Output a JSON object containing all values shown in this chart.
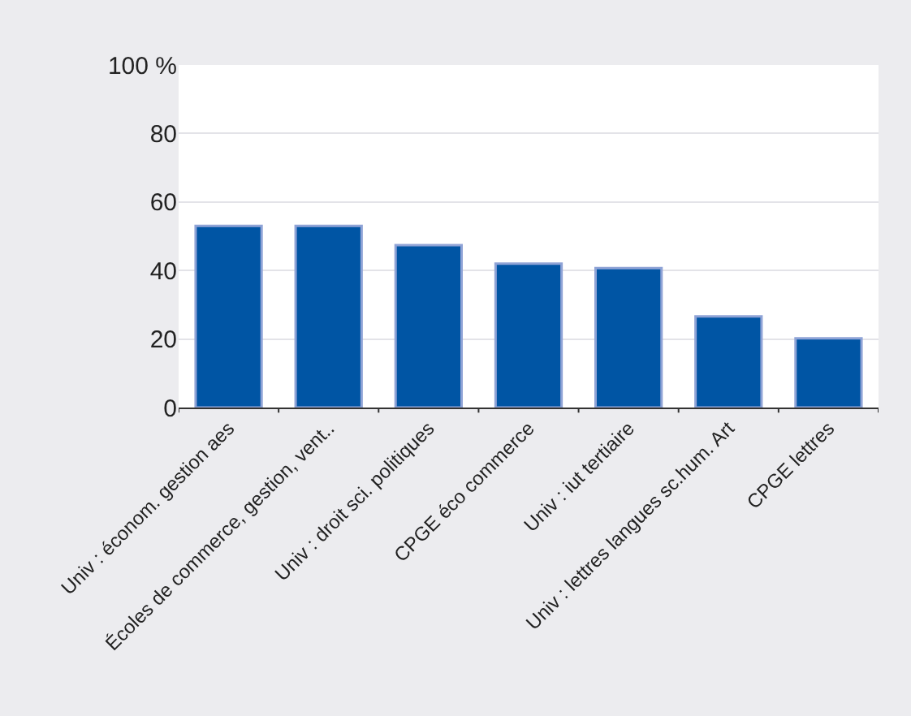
{
  "chart_data": {
    "type": "bar",
    "categories": [
      "Univ : économ. gestion aes",
      "Écoles de commerce, gestion, vent..",
      "Univ : droit sci. politiques",
      "CPGE éco commerce",
      "Univ : iut tertiaire",
      "Univ : lettres langues sc.hum. Art",
      "CPGE lettres"
    ],
    "values": [
      53,
      53,
      47.4,
      42,
      40.7,
      26.6,
      20.2
    ],
    "color": "#0055a4",
    "ylim": [
      0,
      100
    ],
    "yticks": [
      0,
      20,
      40,
      60,
      {
        "value": 80,
        "label": "80"
      },
      {
        "value": 100,
        "label": "100 %"
      }
    ],
    "grid": "y"
  }
}
